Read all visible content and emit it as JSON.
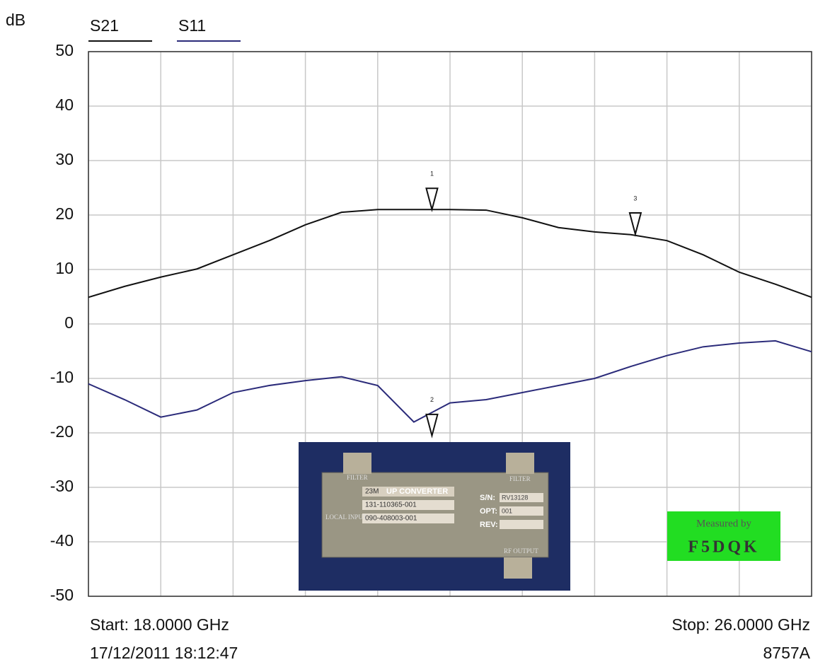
{
  "chart_data": {
    "type": "line",
    "y_label": "dB",
    "x": [
      18.0,
      18.4,
      18.8,
      19.2,
      19.6,
      20.0,
      20.4,
      20.8,
      21.2,
      21.6,
      22.0,
      22.4,
      22.8,
      23.2,
      23.6,
      24.0,
      24.4,
      24.8,
      25.2,
      25.6,
      26.0
    ],
    "series": [
      {
        "name": "S21",
        "color": "#111111",
        "values": [
          4.9,
          6.9,
          8.6,
          10.1,
          12.7,
          15.3,
          18.2,
          20.5,
          21,
          21,
          21,
          20.9,
          19.5,
          17.7,
          16.9,
          16.4,
          15.3,
          12.7,
          9.5,
          7.3,
          4.9
        ]
      },
      {
        "name": "S11",
        "color": "#2b2b7a",
        "values": [
          -11,
          -13.9,
          -17.1,
          -15.8,
          -12.6,
          -11.3,
          -10.4,
          -9.7,
          -11.3,
          -18,
          -14.5,
          -13.9,
          -12.6,
          -11.3,
          -10,
          -7.8,
          -5.8,
          -4.2,
          -3.5,
          -3.1,
          -5.1
        ]
      }
    ],
    "markers": [
      {
        "label": "1",
        "x": 21.8,
        "y": 21
      },
      {
        "label": "2",
        "x": 21.8,
        "y": -20.5
      },
      {
        "label": "3",
        "x": 24.05,
        "y": 16.5
      }
    ],
    "xlim": [
      18,
      26
    ],
    "ylim": [
      -50,
      50
    ],
    "yticks": [
      50,
      40,
      30,
      20,
      10,
      0,
      -10,
      -20,
      -30,
      -40,
      -50
    ],
    "grid": true,
    "start_label": "Start: 18.0000 GHz",
    "stop_label": "Stop: 26.0000 GHz",
    "timestamp": "17/12/2011 18:12:47",
    "instrument": "8757A",
    "badge": [
      "Measured by",
      "F5DQK"
    ],
    "inset": {
      "filter_left": "FILTER",
      "filter_right": "FILTER",
      "model": "23M",
      "name": "UP CONVERTER",
      "part1": "131-110365-001",
      "part2": "090-408003-001",
      "sn_label": "S/N:",
      "sn": "RV13128",
      "opt_label": "OPT:",
      "opt": "001",
      "rev_label": "REV:",
      "local": "LOCAL INPUT",
      "rf": "RF OUTPUT"
    }
  }
}
